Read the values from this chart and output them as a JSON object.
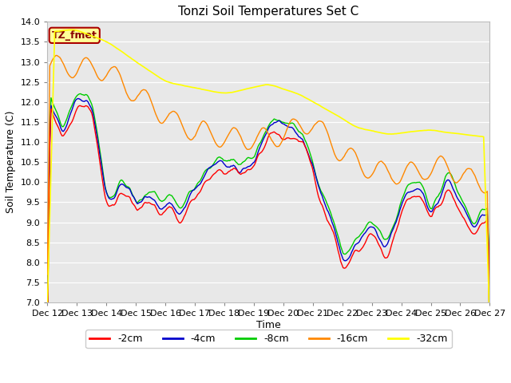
{
  "title": "Tonzi Soil Temperatures Set C",
  "xlabel": "Time",
  "ylabel": "Soil Temperature (C)",
  "ylim": [
    7.0,
    14.0
  ],
  "yticks": [
    7.0,
    7.5,
    8.0,
    8.5,
    9.0,
    9.5,
    10.0,
    10.5,
    11.0,
    11.5,
    12.0,
    12.5,
    13.0,
    13.5,
    14.0
  ],
  "xtick_labels": [
    "Dec 12",
    "Dec 13",
    "Dec 14",
    "Dec 15",
    "Dec 16",
    "Dec 17",
    "Dec 18",
    "Dec 19",
    "Dec 20",
    "Dec 21",
    "Dec 22",
    "Dec 23",
    "Dec 24",
    "Dec 25",
    "Dec 26",
    "Dec 27"
  ],
  "colors": {
    "2cm": "#ff0000",
    "4cm": "#0000cc",
    "8cm": "#00cc00",
    "16cm": "#ff8800",
    "32cm": "#ffff00"
  },
  "legend_labels": [
    "-2cm",
    "-4cm",
    "-8cm",
    "-16cm",
    "-32cm"
  ],
  "plot_bg_color": "#e8e8e8",
  "annotation_text": "TZ_fmet",
  "annotation_bg": "#ffff99",
  "annotation_border": "#aa0000",
  "title_fontsize": 11,
  "axis_label_fontsize": 9,
  "tick_fontsize": 8
}
